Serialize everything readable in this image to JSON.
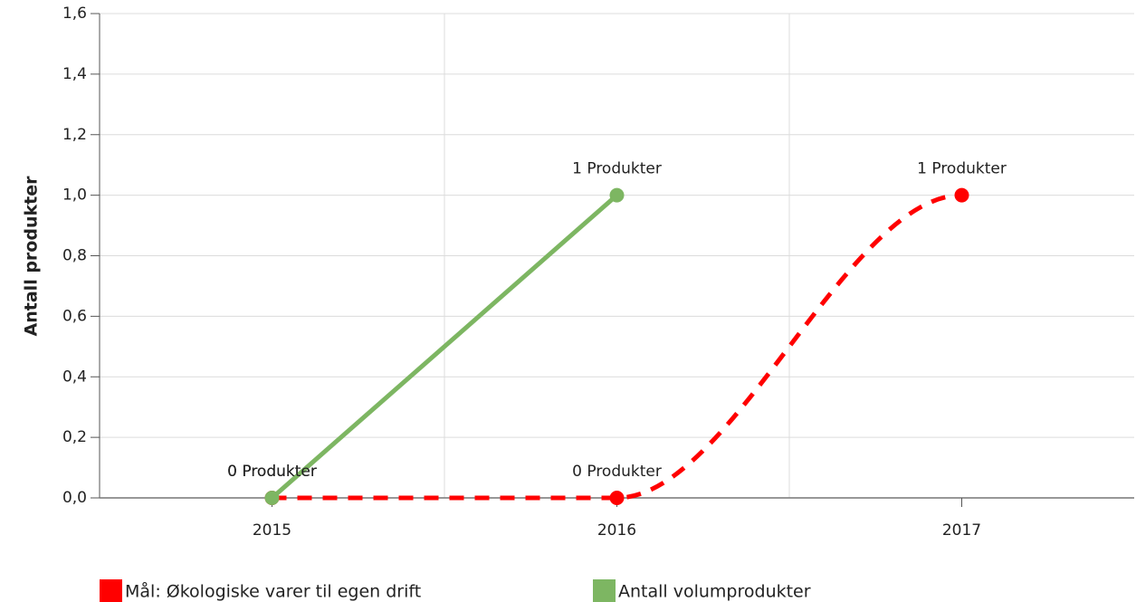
{
  "chart_data": {
    "type": "line",
    "y_label": "Antall produkter",
    "categories": [
      "2015",
      "2016",
      "2017"
    ],
    "series": [
      {
        "name": "Mål: Økologiske varer til egen drift",
        "color": "#ff0000",
        "dashed": true,
        "smooth": true,
        "values": [
          0,
          0,
          1
        ],
        "value_labels": [
          "0 Produkter",
          "0 Produkter",
          "1 Produkter"
        ]
      },
      {
        "name": "Antall volumprodukter",
        "color": "#7db662",
        "dashed": false,
        "smooth": false,
        "values": [
          0,
          1,
          null
        ],
        "value_labels": [
          "0 Produkter",
          "1 Produkter",
          null
        ]
      }
    ],
    "ylim": [
      0,
      1.6
    ],
    "yticks": [
      {
        "value": 0,
        "label": "0,0"
      },
      {
        "value": 0.2,
        "label": "0,2"
      },
      {
        "value": 0.4,
        "label": "0,4"
      },
      {
        "value": 0.6,
        "label": "0,6"
      },
      {
        "value": 0.8,
        "label": "0,8"
      },
      {
        "value": 1.0,
        "label": "1,0"
      },
      {
        "value": 1.2,
        "label": "1,2"
      },
      {
        "value": 1.4,
        "label": "1,4"
      },
      {
        "value": 1.6,
        "label": "1,6"
      }
    ],
    "grid": true,
    "legend": "bottom"
  }
}
